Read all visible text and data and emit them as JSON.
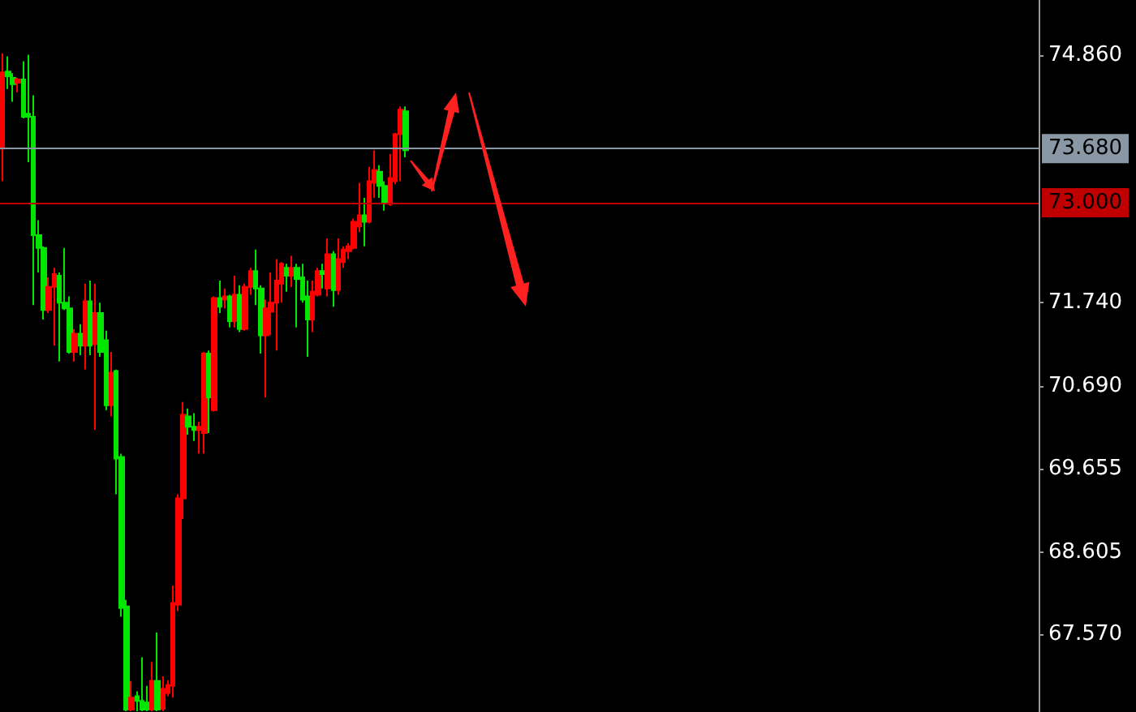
{
  "chart_data": {
    "type": "candlestick",
    "categories": [
      null,
      null,
      null,
      null,
      null,
      null,
      null,
      null,
      null,
      null,
      null,
      null,
      null,
      null,
      null,
      null,
      null,
      null,
      null,
      null,
      null,
      null,
      null,
      null,
      null,
      null,
      null,
      null,
      null,
      null,
      null,
      null,
      null,
      null,
      null,
      null,
      null,
      null,
      null,
      null,
      null,
      null,
      null,
      null,
      null,
      null,
      null,
      null,
      null,
      null,
      null,
      null,
      null,
      null,
      null,
      null,
      null,
      null,
      null,
      null,
      null,
      null,
      null,
      null,
      null,
      null,
      null,
      null,
      null,
      null,
      null,
      null,
      null,
      null,
      null,
      null,
      null,
      null,
      null,
      null,
      null,
      null,
      null,
      null,
      null,
      null,
      null,
      null,
      null,
      null,
      null,
      null,
      null,
      null,
      null,
      null,
      null,
      null,
      null,
      null,
      null,
      null,
      null,
      null,
      null,
      null,
      null,
      null,
      null,
      null,
      null,
      null,
      null,
      null,
      null,
      null,
      null,
      null,
      null,
      null,
      null,
      null,
      null,
      null,
      null,
      null,
      null,
      null,
      null,
      null,
      null,
      null,
      null,
      null,
      null,
      null,
      null,
      null,
      null,
      null,
      null,
      null,
      null,
      null,
      null,
      null,
      null,
      null,
      null,
      null,
      null,
      null,
      null,
      null,
      null,
      null,
      null,
      null,
      null,
      null,
      null,
      null,
      null,
      null,
      null,
      null,
      null,
      null,
      null,
      null,
      null,
      null,
      null,
      null,
      null,
      null,
      null,
      null,
      null,
      null,
      null,
      null,
      null,
      null,
      null,
      null,
      null,
      null,
      null,
      null,
      null,
      null,
      null,
      null,
      null,
      null,
      null,
      null,
      null,
      null,
      null
    ],
    "ohlc": [
      [
        73.68,
        74.88,
        73.27,
        74.64
      ],
      [
        74.65,
        74.84,
        74.43,
        74.59
      ],
      [
        74.57,
        74.63,
        74.27,
        74.49
      ],
      [
        74.51,
        74.57,
        74.39,
        74.55
      ],
      [
        74.55,
        74.78,
        74.06,
        74.08
      ],
      [
        74.12,
        74.86,
        73.51,
        74.08
      ],
      [
        74.08,
        74.35,
        71.71,
        72.59
      ],
      [
        72.59,
        72.78,
        72.12,
        72.43
      ],
      [
        72.43,
        72.45,
        71.53,
        71.65
      ],
      [
        71.65,
        72.06,
        71.61,
        71.94
      ],
      [
        71.94,
        72.18,
        71.2,
        72.1
      ],
      [
        72.08,
        72.12,
        71.0,
        71.74
      ],
      [
        71.74,
        72.43,
        71.65,
        71.67
      ],
      [
        71.67,
        71.82,
        71.1,
        71.12
      ],
      [
        71.12,
        71.41,
        71.0,
        71.35
      ],
      [
        71.35,
        71.47,
        71.08,
        71.2
      ],
      [
        71.2,
        71.98,
        70.9,
        71.76
      ],
      [
        71.76,
        72.02,
        71.08,
        71.2
      ],
      [
        71.22,
        71.98,
        70.14,
        71.61
      ],
      [
        71.61,
        71.74,
        71.06,
        71.12
      ],
      [
        71.27,
        71.39,
        70.39,
        70.45
      ],
      [
        70.45,
        71.12,
        70.31,
        70.86
      ],
      [
        70.88,
        70.9,
        69.33,
        69.78
      ],
      [
        69.8,
        69.84,
        67.79,
        67.9
      ],
      [
        67.92,
        68.0,
        66.6,
        66.62
      ],
      [
        66.62,
        66.98,
        66.6,
        66.77
      ],
      [
        66.79,
        66.85,
        66.6,
        66.73
      ],
      [
        66.73,
        67.28,
        66.6,
        66.62
      ],
      [
        66.71,
        66.92,
        66.6,
        66.62
      ],
      [
        66.62,
        67.22,
        66.6,
        66.98
      ],
      [
        66.98,
        67.59,
        66.6,
        66.62
      ],
      [
        66.63,
        67.04,
        66.6,
        66.88
      ],
      [
        66.83,
        66.99,
        66.79,
        66.93
      ],
      [
        66.92,
        68.18,
        66.77,
        67.96
      ],
      [
        67.94,
        69.33,
        67.86,
        69.28
      ],
      [
        69.28,
        70.49,
        69.02,
        70.33
      ],
      [
        70.31,
        70.41,
        70.08,
        70.18
      ],
      [
        70.18,
        70.35,
        70.0,
        70.14
      ],
      [
        70.14,
        70.24,
        69.84,
        70.18
      ],
      [
        70.1,
        71.12,
        69.84,
        71.1
      ],
      [
        71.1,
        71.14,
        70.1,
        70.55
      ],
      [
        70.39,
        71.82,
        70.37,
        71.8
      ],
      [
        71.8,
        72.02,
        71.61,
        71.69
      ],
      [
        71.78,
        71.92,
        71.67,
        71.82
      ],
      [
        71.82,
        71.84,
        71.43,
        71.51
      ],
      [
        71.51,
        72.08,
        71.43,
        71.84
      ],
      [
        71.84,
        71.96,
        71.37,
        71.41
      ],
      [
        71.41,
        71.98,
        71.39,
        71.94
      ],
      [
        71.94,
        72.18,
        71.84,
        72.14
      ],
      [
        72.14,
        72.41,
        71.71,
        71.92
      ],
      [
        71.92,
        71.96,
        71.1,
        71.33
      ],
      [
        71.33,
        71.78,
        70.55,
        71.67
      ],
      [
        71.63,
        72.12,
        71.33,
        71.74
      ],
      [
        71.74,
        72.29,
        71.14,
        72.02
      ],
      [
        71.98,
        72.25,
        71.74,
        72.23
      ],
      [
        72.18,
        72.23,
        71.88,
        72.08
      ],
      [
        72.08,
        72.33,
        71.94,
        72.18
      ],
      [
        72.18,
        72.23,
        71.43,
        72.04
      ],
      [
        72.06,
        72.23,
        71.74,
        71.78
      ],
      [
        71.82,
        72.02,
        71.06,
        71.53
      ],
      [
        71.53,
        72.02,
        71.37,
        71.88
      ],
      [
        71.84,
        72.18,
        71.82,
        72.14
      ],
      [
        72.14,
        72.23,
        71.92,
        72.1
      ],
      [
        71.92,
        72.55,
        71.82,
        72.35
      ],
      [
        72.35,
        72.39,
        71.69,
        71.9
      ],
      [
        71.9,
        72.55,
        71.84,
        72.29
      ],
      [
        72.25,
        72.45,
        72.18,
        72.41
      ],
      [
        72.39,
        72.49,
        72.29,
        72.45
      ],
      [
        72.43,
        72.8,
        72.41,
        72.76
      ],
      [
        72.7,
        73.25,
        72.63,
        72.84
      ],
      [
        72.84,
        73.06,
        72.45,
        72.76
      ],
      [
        72.76,
        73.45,
        72.74,
        73.27
      ],
      [
        73.25,
        73.66,
        73.06,
        73.41
      ],
      [
        73.39,
        73.47,
        73.06,
        73.21
      ],
      [
        73.21,
        73.27,
        72.9,
        73.0
      ],
      [
        72.98,
        73.61,
        72.96,
        73.31
      ],
      [
        73.27,
        73.88,
        73.23,
        73.86
      ],
      [
        73.86,
        74.21,
        73.27,
        74.17
      ],
      [
        74.15,
        74.21,
        73.57,
        73.66
      ],
      null,
      null,
      null,
      null,
      null,
      null,
      null,
      null,
      null,
      null,
      null,
      null,
      null,
      null,
      null,
      null,
      null,
      null,
      null,
      null,
      null,
      null,
      null,
      null,
      null,
      null,
      null,
      null,
      null,
      null,
      null,
      null,
      null,
      null,
      null,
      null,
      null,
      null,
      null,
      null,
      null,
      null,
      null,
      null,
      null,
      null,
      null,
      null,
      null,
      null,
      null,
      null,
      null,
      null,
      null,
      null,
      null,
      null,
      null,
      null,
      null,
      null,
      null,
      null,
      null,
      null,
      null,
      null,
      null,
      null,
      null,
      null,
      null,
      null,
      null,
      null,
      null,
      null,
      null,
      null,
      null,
      null,
      null,
      null,
      null,
      null,
      null,
      null,
      null,
      null,
      null,
      null,
      null,
      null,
      null,
      null,
      null,
      null,
      null,
      null,
      null,
      null,
      null,
      null,
      null,
      null,
      null,
      null,
      null,
      null,
      null,
      null,
      null,
      null,
      null,
      null,
      null,
      null,
      null,
      null,
      null,
      null
    ],
    "ylim": [
      66.59,
      75.55
    ],
    "yticks": [
      {
        "value": 74.86,
        "label": "74.860"
      },
      {
        "value": 71.74,
        "label": "71.740"
      },
      {
        "value": 70.69,
        "label": "70.690"
      },
      69.655,
      68.605,
      {
        "value": 67.57,
        "label": "67.570"
      }
    ],
    "ref_lines": [
      {
        "axis": "y",
        "value": 73.68,
        "label": "73.680",
        "color": "#8a98a6"
      },
      {
        "axis": "y",
        "value": 73.0,
        "label": "73.000",
        "color": "#c00000"
      }
    ],
    "tick_labels": "y"
  }
}
